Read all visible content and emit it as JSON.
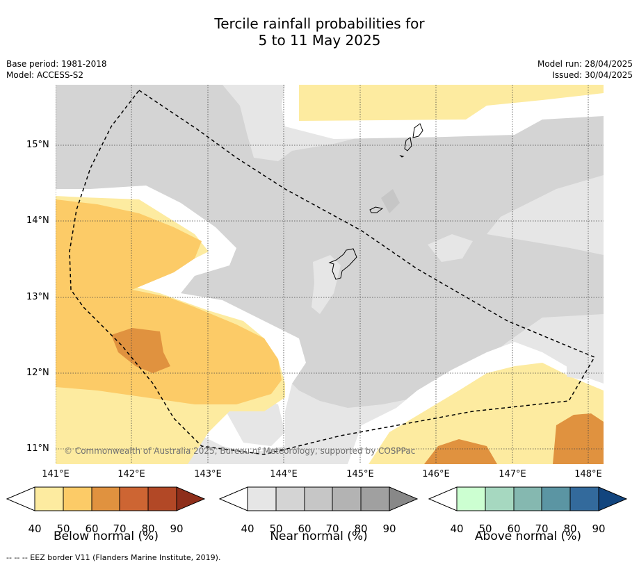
{
  "title_line1": "Tercile rainfall probabilities for",
  "title_line2": "5 to 11 May 2025",
  "base_period": "Base period: 1981-2018",
  "model": "Model: ACCESS-S2",
  "model_run": "Model run: 28/04/2025",
  "issued": "Issued: 30/04/2025",
  "y_ticks": [
    "15°N",
    "14°N",
    "13°N",
    "12°N",
    "11°N"
  ],
  "x_ticks": [
    "141°E",
    "142°E",
    "143°E",
    "144°E",
    "145°E",
    "146°E",
    "147°E",
    "148°E"
  ],
  "copyright": "© Commonwealth of Australia 2025, Bureau of Meteorology, supported by COSPPac",
  "colorbars": [
    {
      "title": "Below normal (%)",
      "ticks": [
        "40",
        "50",
        "60",
        "70",
        "80",
        "90"
      ],
      "colors": [
        "#fdeba0",
        "#fccb67",
        "#e0923f",
        "#cd6533",
        "#b24826",
        "#8e2e1a"
      ]
    },
    {
      "title": "Near normal (%)",
      "ticks": [
        "40",
        "50",
        "60",
        "70",
        "80",
        "90"
      ],
      "colors": [
        "#e6e6e6",
        "#d4d4d4",
        "#c6c6c6",
        "#b3b3b3",
        "#a0a0a0",
        "#888888"
      ]
    },
    {
      "title": "Above normal (%)",
      "ticks": [
        "40",
        "50",
        "60",
        "70",
        "80",
        "90"
      ],
      "colors": [
        "#ccffd1",
        "#a6d8c0",
        "#85b8b0",
        "#5b95a3",
        "#336a9c",
        "#12457e"
      ]
    }
  ],
  "footer": "--  --  -- EEZ border V11 (Flanders Marine Institute, 2019)."
}
